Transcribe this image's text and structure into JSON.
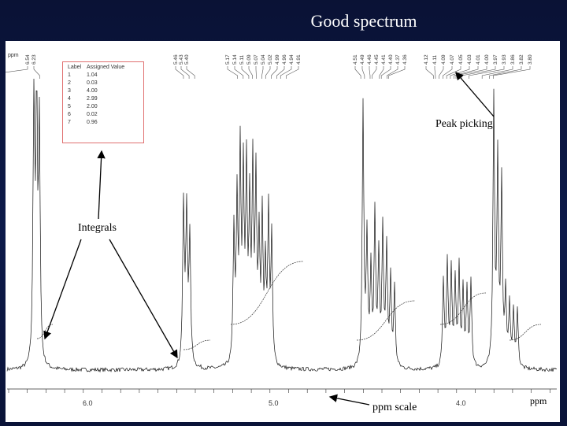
{
  "title": "Good spectrum",
  "callouts": {
    "peak_picking": "Peak picking",
    "integrals": "Integrals",
    "ppm_scale": "ppm scale",
    "ppm_right": "ppm"
  },
  "axis": {
    "unit_top": "ppm",
    "ticks": [
      "6.0",
      "5.0",
      "4.0"
    ]
  },
  "integral_table": {
    "headers": [
      "Label",
      "Assigned Value"
    ],
    "rows": [
      [
        "1",
        "1.04"
      ],
      [
        "2",
        "0.03"
      ],
      [
        "3",
        "4.00"
      ],
      [
        "4",
        "2.99"
      ],
      [
        "5",
        "2.00"
      ],
      [
        "6",
        "0.02"
      ],
      [
        "7",
        "0.96"
      ]
    ]
  },
  "peak_labels": {
    "group1": [
      "6.54",
      "6.23"
    ],
    "group2": [
      "5.46",
      "5.43",
      "5.40"
    ],
    "group3": [
      "5.17",
      "5.14",
      "5.11",
      "5.09",
      "5.07",
      "5.04",
      "5.02",
      "4.99",
      "4.96",
      "4.94",
      "4.91"
    ],
    "group4": [
      "4.51",
      "4.49",
      "4.46",
      "4.45",
      "4.41",
      "4.40",
      "4.37",
      "4.36"
    ],
    "group5": [
      "4.12",
      "4.11",
      "4.09",
      "4.07",
      "4.05",
      "4.03",
      "4.01",
      "4.00",
      "3.97",
      "3.93",
      "3.86",
      "3.82",
      "3.80"
    ]
  },
  "colors": {
    "slide_background": "#0b1338",
    "panel": "#ffffff",
    "table_border": "#e07070"
  }
}
